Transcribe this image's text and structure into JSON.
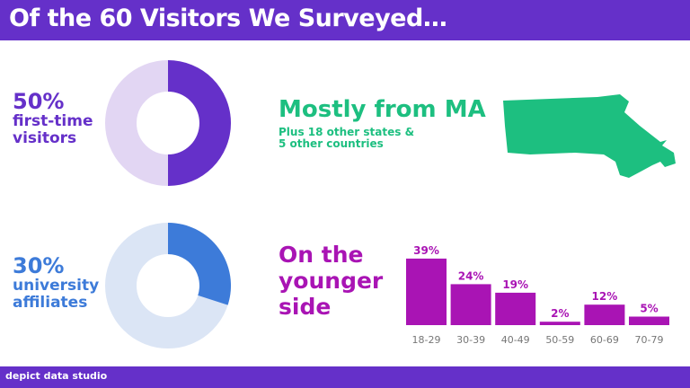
{
  "title": "Of the 60 Visitors We Surveyed…",
  "footer": "depict data studio",
  "stat1": {
    "value": "50%",
    "label1": "first-time",
    "label2": "visitors",
    "color": "#6530c9",
    "light": "#e2d6f3",
    "fraction": 0.5
  },
  "stat2": {
    "value": "30%",
    "label1": "university",
    "label2": "affiliates",
    "color": "#3d7bd9",
    "light": "#dbe5f5",
    "fraction": 0.3
  },
  "origin": {
    "headline": "Mostly from MA",
    "line1": "Plus 18 other states &",
    "line2": "5 other countries",
    "color": "#1dbf80"
  },
  "age": {
    "line1": "On the",
    "line2": "younger",
    "line3": "side",
    "color": "#a914b4"
  },
  "chart_data": {
    "type": "bar",
    "categories": [
      "18-29",
      "30-39",
      "40-49",
      "50-59",
      "60-69",
      "70-79"
    ],
    "values": [
      39,
      24,
      19,
      2,
      12,
      5
    ],
    "labels": [
      "39%",
      "24%",
      "19%",
      "2%",
      "12%",
      "5%"
    ]
  }
}
